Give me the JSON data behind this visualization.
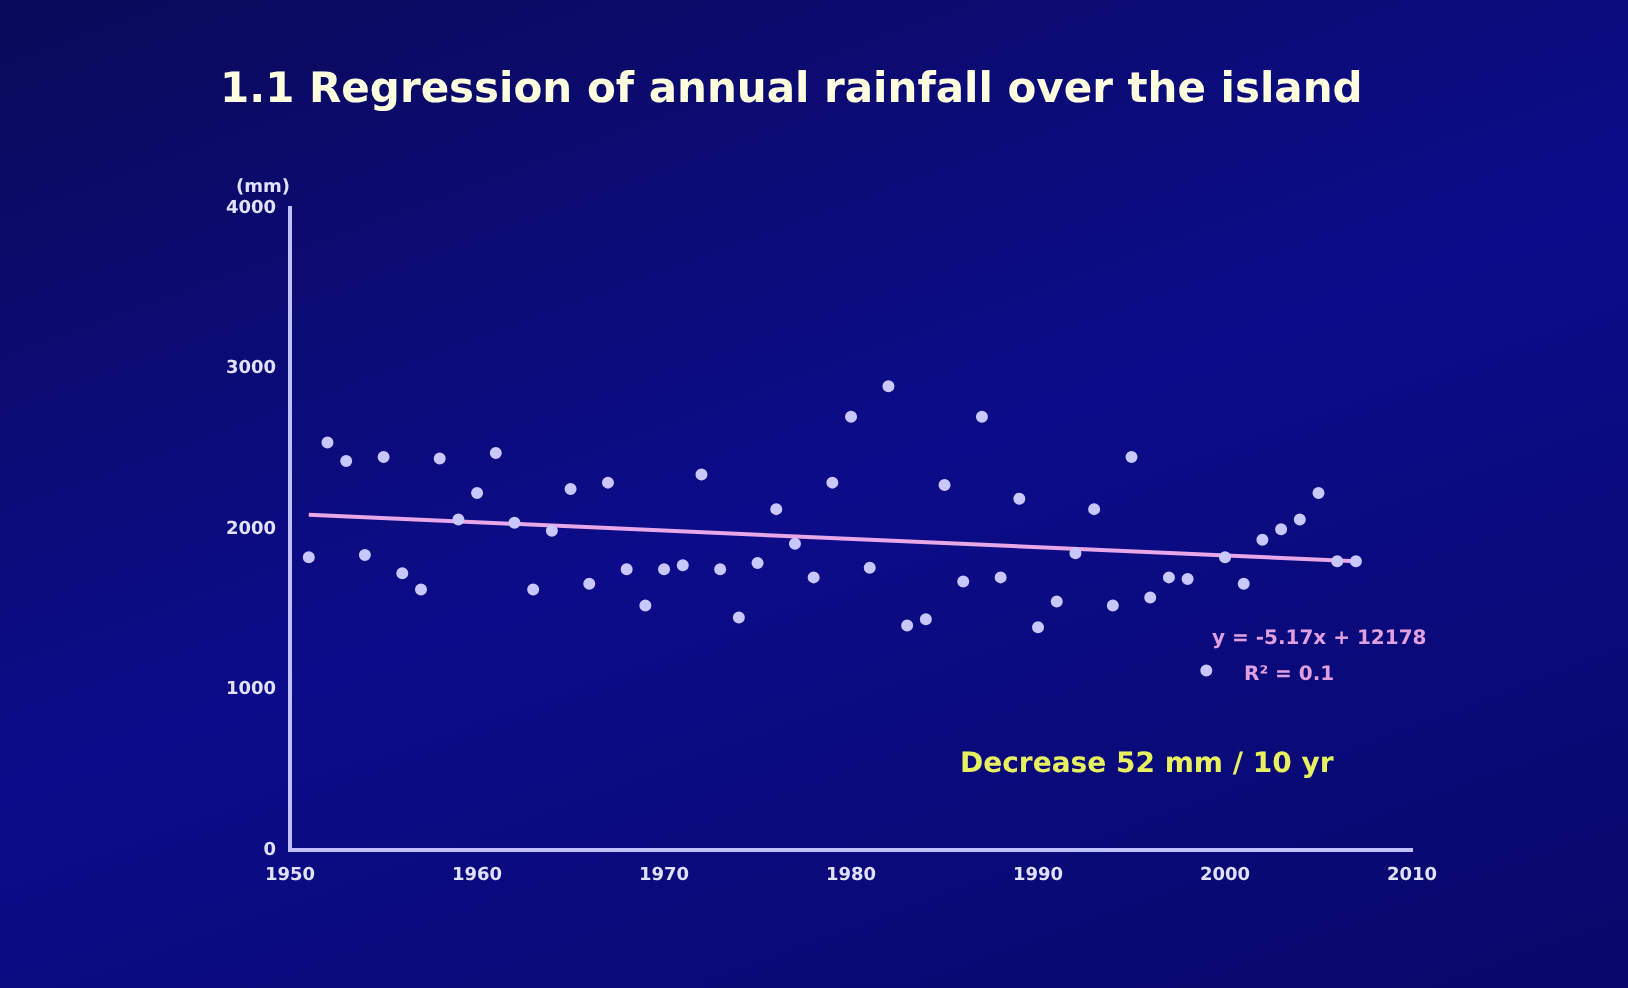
{
  "chart_data": {
    "type": "scatter",
    "title": "1.1  Regression of annual rainfall over the island",
    "ylabel": "(mm)",
    "x": [
      1951,
      1952,
      1953,
      1954,
      1955,
      1956,
      1957,
      1958,
      1959,
      1960,
      1961,
      1962,
      1963,
      1964,
      1965,
      1966,
      1967,
      1968,
      1969,
      1970,
      1971,
      1972,
      1973,
      1974,
      1975,
      1976,
      1977,
      1978,
      1979,
      1980,
      1981,
      1982,
      1983,
      1984,
      1985,
      1986,
      1987,
      1988,
      1989,
      1990,
      1991,
      1992,
      1993,
      1994,
      1995,
      1996,
      1997,
      1998,
      1999,
      2000,
      2001,
      2002,
      2003,
      2004,
      2005,
      2006,
      2007
    ],
    "series": [
      {
        "color": "#c8c8ff",
        "values": [
          1825,
          2540,
          2425,
          1840,
          2450,
          1725,
          1625,
          2440,
          2060,
          2225,
          2475,
          2040,
          1625,
          1990,
          2250,
          1660,
          2290,
          1750,
          1525,
          1750,
          1775,
          2340,
          1750,
          1450,
          1790,
          2125,
          1910,
          1700,
          2290,
          2700,
          1760,
          2890,
          1400,
          1440,
          2275,
          1675,
          2700,
          1700,
          2190,
          1390,
          1550,
          1850,
          2125,
          1525,
          2450,
          1575,
          1700,
          1690,
          1120,
          1825,
          1660,
          1935,
          2000,
          2060,
          2225,
          1800,
          1800
        ]
      },
      {
        "type": "line",
        "color": "#e8a8e8",
        "x": [
          1951,
          2007
        ],
        "values": [
          2090,
          1800
        ],
        "marker": "none"
      }
    ],
    "xlim": [
      1950,
      2010
    ],
    "xticks": [
      1950,
      1960,
      1970,
      1980,
      1990,
      2000,
      2010
    ],
    "ylim": [
      0,
      4000
    ],
    "yticks": [
      0,
      1000,
      2000,
      3000,
      4000
    ],
    "grid": false,
    "legend": false,
    "marker": "circle",
    "annotations": [
      "y = -5.17x + 12178",
      "R² = 0.1",
      "Decrease 52 mm / 10 yr"
    ]
  }
}
